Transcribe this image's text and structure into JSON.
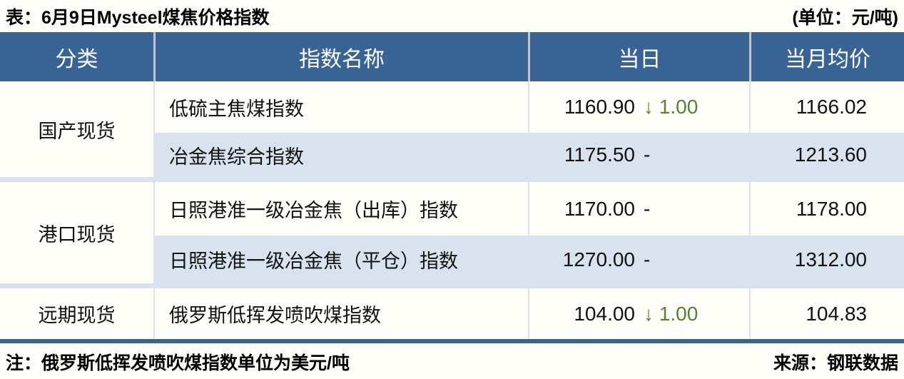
{
  "title_bar": {
    "title": "表：6月9日Mysteel煤焦价格指数",
    "unit": "(单位：元/吨)"
  },
  "table": {
    "columns": [
      "分类",
      "指数名称",
      "当日",
      "当月均价"
    ],
    "groups": [
      {
        "category": "国产现货",
        "rows": [
          {
            "name": "低硫主焦煤指数",
            "day_value": "1160.90",
            "day_change": "↓ 1.00",
            "dir": "down",
            "month_avg": "1166.02"
          },
          {
            "name": "冶金焦综合指数",
            "day_value": "1175.50",
            "day_change": "-",
            "dir": "flat",
            "month_avg": "1213.60"
          }
        ]
      },
      {
        "category": "港口现货",
        "rows": [
          {
            "name": "日照港准一级冶金焦（出库）指数",
            "day_value": "1170.00",
            "day_change": "-",
            "dir": "flat",
            "month_avg": "1178.00"
          },
          {
            "name": "日照港准一级冶金焦（平仓）指数",
            "day_value": "1270.00",
            "day_change": "-",
            "dir": "flat",
            "month_avg": "1312.00"
          }
        ]
      },
      {
        "category": "远期现货",
        "rows": [
          {
            "name": "俄罗斯低挥发喷吹煤指数",
            "day_value": "104.00",
            "day_change": "↓ 1.00",
            "dir": "down",
            "month_avg": "104.83"
          }
        ]
      }
    ]
  },
  "footer": {
    "note": "注：俄罗斯低挥发喷吹煤指数单位为美元/吨",
    "source": "来源：钢联数据"
  },
  "colors": {
    "header_bg": "#386394",
    "alt_row_bg": "#D9E2EF",
    "down_green": "#548235",
    "table_border_blue": "#386394",
    "page_bg": "#FFFEF8"
  }
}
